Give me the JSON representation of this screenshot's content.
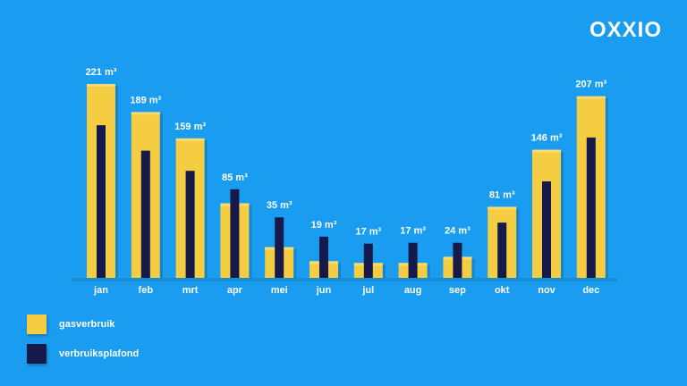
{
  "brand": {
    "logo_text": "OXXIO"
  },
  "colors": {
    "background": "#1a9cf0",
    "gasverbruik": "#f4cd43",
    "verbruiksplafond": "#151a4a",
    "text": "#ffffff"
  },
  "chart_data": {
    "type": "bar",
    "title": "",
    "xlabel": "",
    "ylabel": "",
    "grid": false,
    "legend_position": "bottom-left",
    "categories": [
      "jan",
      "feb",
      "mrt",
      "apr",
      "mei",
      "jun",
      "jul",
      "aug",
      "sep",
      "okt",
      "nov",
      "dec"
    ],
    "ylim": [
      0,
      230
    ],
    "series": [
      {
        "name": "gasverbruik",
        "values": [
          221,
          189,
          159,
          85,
          35,
          19,
          17,
          17,
          24,
          81,
          146,
          207
        ],
        "data_labels": [
          "221 m³",
          "189 m³",
          "159 m³",
          "85 m³",
          "35 m³",
          "19 m³",
          "17 m³",
          "17 m³",
          "24 m³",
          "81 m³",
          "146 m³",
          "207 m³"
        ]
      },
      {
        "name": "verbruiksplafond",
        "values": [
          174,
          145,
          122,
          101,
          69,
          47,
          39,
          40,
          40,
          63,
          110,
          160
        ]
      }
    ]
  },
  "legend": {
    "items": [
      {
        "label": "gasverbruik",
        "color": "#f4cd43"
      },
      {
        "label": "verbruiksplafond",
        "color": "#151a4a"
      }
    ]
  }
}
